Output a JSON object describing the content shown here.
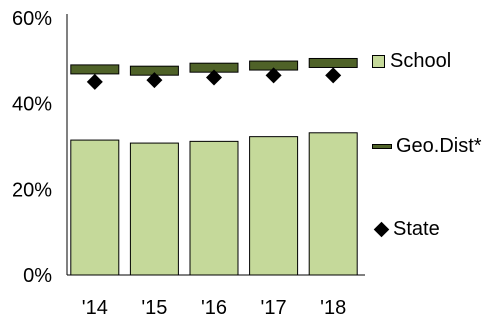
{
  "chart_data": {
    "type": "bar",
    "categories": [
      "'14",
      "'15",
      "'16",
      "'17",
      "'18"
    ],
    "ylim": [
      0,
      60
    ],
    "y_ticks": [
      "0%",
      "20%",
      "40%",
      "60%"
    ],
    "series": [
      {
        "name": "School",
        "type": "bar",
        "values": [
          31.5,
          30.8,
          31.2,
          32.3,
          33.2
        ],
        "color": "#c5d99a"
      },
      {
        "name": "Geo.Dist*",
        "type": "marker-line",
        "values": [
          48.0,
          47.7,
          48.4,
          48.9,
          49.5
        ],
        "color": "#4f6228"
      },
      {
        "name": "State",
        "type": "diamond",
        "values": [
          45.1,
          45.5,
          46.1,
          46.6,
          46.6
        ],
        "color": "#000000"
      }
    ],
    "grid": false,
    "legend_position": "right"
  },
  "colors": {
    "school": "#c5d99a",
    "geo": "#4f6228",
    "state": "#000000",
    "axis": "#000000"
  }
}
